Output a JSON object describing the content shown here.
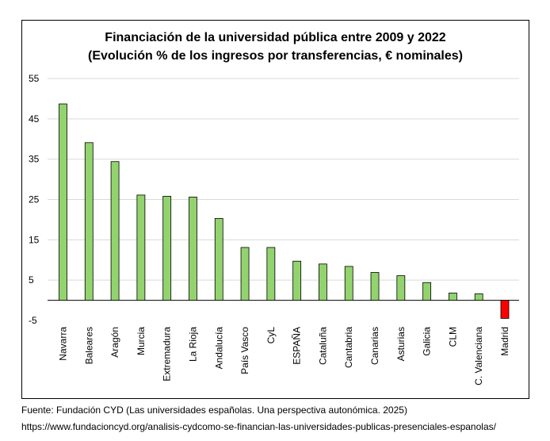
{
  "chart_data": {
    "type": "bar",
    "title": "Financiación de la universidad pública entre 2009 y 2022",
    "subtitle": "(Evolución % de los ingresos por transferencias, € nominales)",
    "xlabel": "",
    "ylabel": "",
    "ylim": [
      -5,
      55
    ],
    "yticks": [
      -5,
      5,
      15,
      25,
      35,
      45,
      55
    ],
    "grid": true,
    "categories": [
      "Navarra",
      "Baleares",
      "Aragón",
      "Murcia",
      "Extremadura",
      "La Rioja",
      "Andalucía",
      "País Vasco",
      "CyL",
      "ESPAÑA",
      "Cataluña",
      "Cantabria",
      "Canarias",
      "Asturias",
      "Galicia",
      "CLM",
      "C. Valenciana",
      "Madrid"
    ],
    "values": [
      48.7,
      39.1,
      34.4,
      26.1,
      25.8,
      25.6,
      20.3,
      13.1,
      13.1,
      9.7,
      9.0,
      8.4,
      6.9,
      6.1,
      4.4,
      1.8,
      1.6,
      -4.5
    ],
    "colors": {
      "positive": "#92d36e",
      "negative": "#ff0000",
      "outline": "#000000",
      "grid": "#d9d9d9"
    }
  },
  "footer": {
    "source": "Fuente: Fundación CYD (Las universidades españolas. Una perspectiva autonómica. 2025)",
    "url": "https://www.fundacioncyd.org/analisis-cydcomo-se-financian-las-universidades-publicas-presenciales-espanolas/"
  }
}
